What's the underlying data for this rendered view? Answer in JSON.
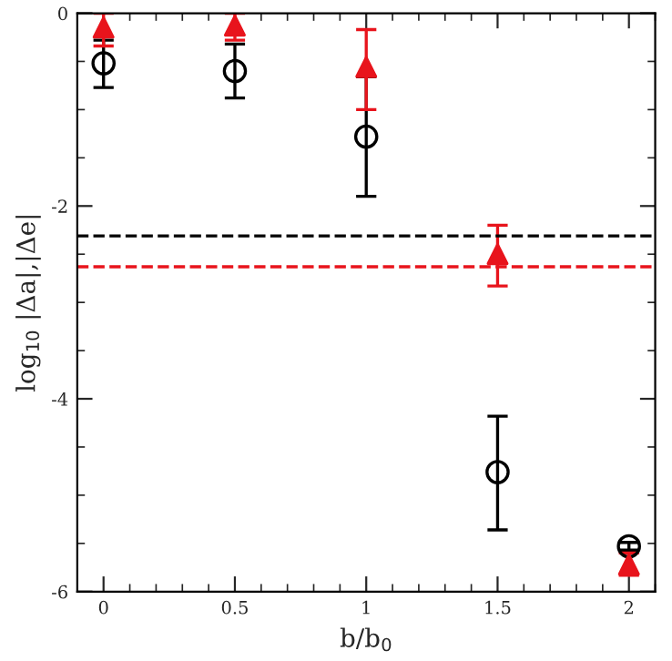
{
  "chart_data": {
    "type": "scatter",
    "xlabel": "b/b$_{0}$",
    "ylabel": "log$_{10}$ |Δa|,|Δe|",
    "x": [
      0,
      0.5,
      1,
      1.5,
      2
    ],
    "series": [
      {
        "color": "#000000",
        "marker": "circle",
        "values": [
          -0.52,
          -0.6,
          -1.28,
          -4.76,
          -5.53
        ],
        "errors": [
          [
            -0.77,
            -0.28
          ],
          [
            -0.88,
            -0.32
          ],
          [
            -1.9,
            -0.66
          ],
          [
            -5.36,
            -4.18
          ],
          [
            -5.57,
            -5.49
          ]
        ]
      },
      {
        "color": "#e8141c",
        "marker": "triangle",
        "values": [
          -0.15,
          -0.13,
          -0.56,
          -2.5,
          -5.72
        ],
        "errors": [
          [
            -0.34,
            0
          ],
          [
            -0.28,
            0
          ],
          [
            -1.0,
            -0.17
          ],
          [
            -2.83,
            -2.2
          ],
          [
            -5.83,
            -5.6
          ]
        ]
      }
    ],
    "ref_lines": [
      {
        "axis": "y",
        "value": -2.31,
        "color": "#000000",
        "line_style": "dashed"
      },
      {
        "axis": "y",
        "value": -2.63,
        "color": "#e8141c",
        "line_style": "dashed"
      }
    ],
    "xlim": [
      -0.1,
      2.1
    ],
    "ylim": [
      -6,
      0
    ],
    "xticks": [
      0,
      0.5,
      1,
      1.5,
      2
    ],
    "yticks": [
      -6,
      -4,
      -2,
      0
    ],
    "grid": false,
    "legend": false
  }
}
